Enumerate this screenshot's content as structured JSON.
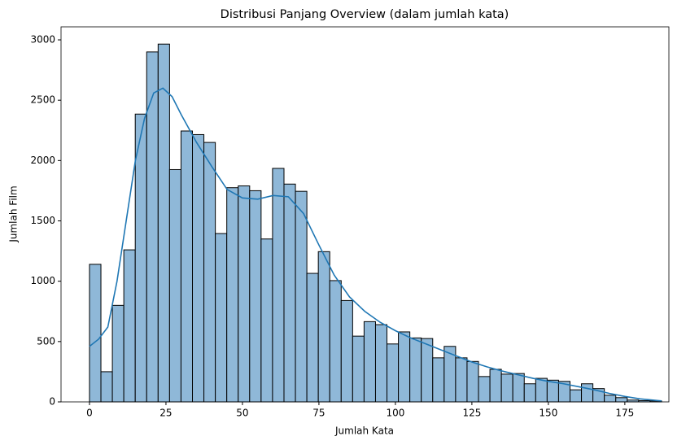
{
  "chart_data": {
    "type": "histogram",
    "title": "Distribusi Panjang Overview (dalam jumlah kata)",
    "xlabel": "Jumlah Kata",
    "ylabel": "Jumlah Film",
    "bins": [
      0,
      3.74,
      7.48,
      11.22,
      14.96,
      18.7,
      22.44,
      26.18,
      29.92,
      33.66,
      37.4,
      41.14,
      44.88,
      48.62,
      52.36,
      56.1,
      59.84,
      63.58,
      67.32,
      71.06,
      74.8,
      78.54,
      82.28,
      86.02,
      89.76,
      93.5,
      97.24,
      100.98,
      104.72,
      108.46,
      112.2,
      115.94,
      119.68,
      123.42,
      127.16,
      130.9,
      134.64,
      138.38,
      142.12,
      145.86,
      149.6,
      153.34,
      157.08,
      160.82,
      164.56,
      168.3,
      172.04,
      175.78,
      179.52,
      183.26,
      187
    ],
    "counts": [
      1140,
      250,
      800,
      1260,
      2385,
      2900,
      2965,
      1925,
      2245,
      2215,
      2150,
      1395,
      1775,
      1790,
      1750,
      1350,
      1935,
      1805,
      1745,
      1065,
      1245,
      1005,
      840,
      545,
      665,
      640,
      480,
      580,
      530,
      525,
      365,
      460,
      365,
      335,
      210,
      270,
      230,
      235,
      150,
      195,
      180,
      170,
      100,
      150,
      110,
      55,
      35,
      15,
      10,
      8
    ],
    "color": "#8fb8d8",
    "edgecolor": "#000000",
    "kde": {
      "color": "#1f77b4",
      "x": [
        0,
        3,
        6,
        9,
        12,
        15,
        18,
        21,
        24,
        27,
        30,
        35,
        40,
        45,
        50,
        55,
        60,
        65,
        70,
        75,
        80,
        85,
        90,
        95,
        100,
        105,
        110,
        115,
        120,
        125,
        130,
        135,
        140,
        145,
        150,
        155,
        160,
        165,
        170,
        175,
        180,
        187
      ],
      "values": [
        460,
        520,
        620,
        1000,
        1500,
        2000,
        2350,
        2560,
        2600,
        2530,
        2380,
        2150,
        1950,
        1760,
        1690,
        1680,
        1710,
        1700,
        1560,
        1300,
        1050,
        870,
        750,
        660,
        590,
        530,
        480,
        430,
        380,
        330,
        290,
        255,
        225,
        195,
        170,
        150,
        125,
        100,
        70,
        45,
        25,
        8
      ]
    },
    "xlim": [
      -9.3,
      189.4
    ],
    "ylim": [
      0,
      3108
    ],
    "xticks": [
      0,
      25,
      50,
      75,
      100,
      125,
      150,
      175
    ],
    "yticks": [
      0,
      500,
      1000,
      1500,
      2000,
      2500,
      3000
    ]
  }
}
